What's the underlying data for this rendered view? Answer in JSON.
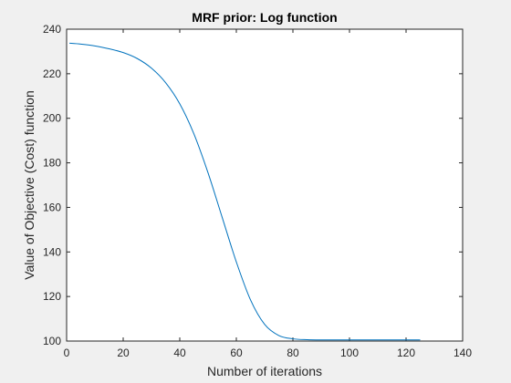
{
  "chart_data": {
    "type": "line",
    "title": "MRF prior: Log function",
    "xlabel": "Number of iterations",
    "ylabel": "Value of Objective (Cost) function",
    "xlim": [
      0,
      140
    ],
    "ylim": [
      100,
      240
    ],
    "xticks": [
      0,
      20,
      40,
      60,
      80,
      100,
      120,
      140
    ],
    "yticks": [
      100,
      120,
      140,
      160,
      180,
      200,
      220,
      240
    ],
    "grid": false,
    "line_color": "#0072bd",
    "series": [
      {
        "x": [
          1,
          5,
          10,
          15,
          20,
          25,
          30,
          35,
          40,
          45,
          50,
          55,
          60,
          65,
          70,
          75,
          80,
          85,
          90,
          100,
          110,
          120,
          125
        ],
        "y": [
          233.7,
          233.3,
          232.5,
          231.2,
          229.5,
          226.8,
          222.5,
          216.0,
          206.5,
          193.0,
          175.5,
          155.5,
          135.5,
          118.5,
          107.5,
          102.5,
          101.0,
          100.6,
          100.5,
          100.5,
          100.5,
          100.5,
          100.5
        ]
      }
    ]
  }
}
